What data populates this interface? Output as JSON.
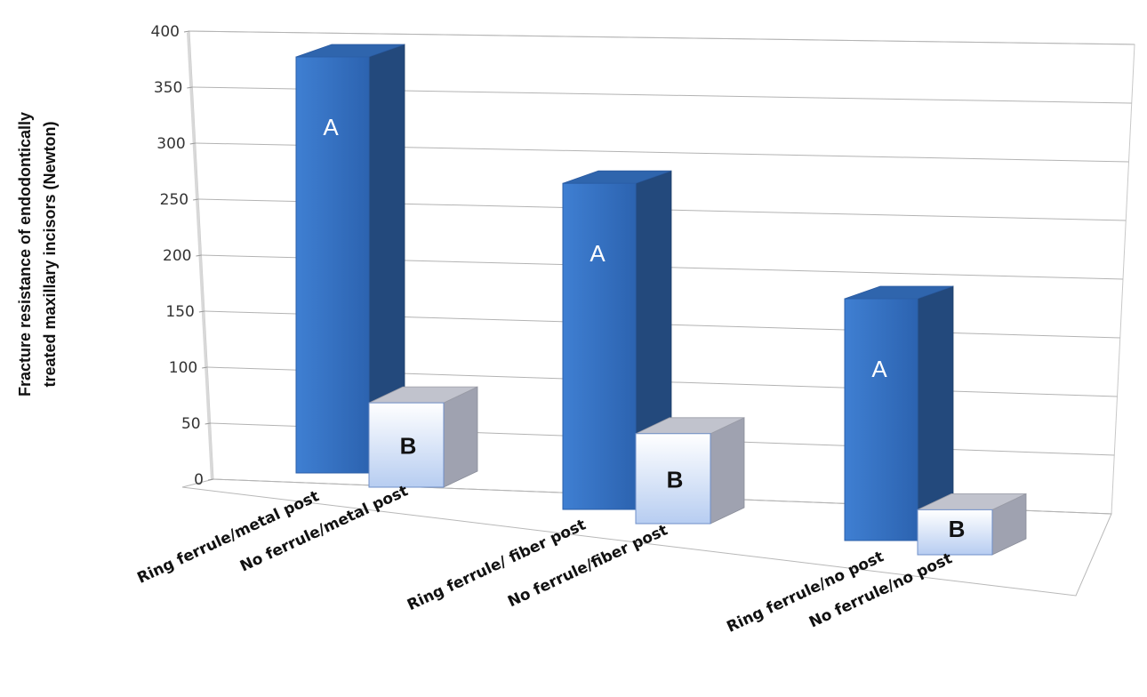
{
  "chart_data": {
    "type": "bar",
    "style": "3d-clustered-column",
    "title": "",
    "xlabel": "",
    "ylabel_lines": [
      "Fracture resistance of endodontically",
      "treated maxillary incisors  (Newton)"
    ],
    "ylim": [
      0,
      400
    ],
    "yticks": [
      0,
      50,
      100,
      150,
      200,
      250,
      300,
      350,
      400
    ],
    "grid": true,
    "legend": "none",
    "groups": [
      "metal post",
      "fiber post",
      "no post"
    ],
    "categories": [
      "Ring ferrule/metal post",
      "No ferrule/metal post",
      "Ring ferrule/ fiber post",
      "No ferrule/fiber post",
      "Ring ferrule/no post",
      "No ferrule/no post"
    ],
    "values": [
      370,
      75,
      290,
      80,
      215,
      40
    ],
    "group_index": [
      0,
      0,
      1,
      1,
      2,
      2
    ],
    "fill_style": [
      "dark",
      "light",
      "dark",
      "light",
      "dark",
      "light"
    ],
    "letters": [
      "A",
      "B",
      "A",
      "B",
      "A",
      "B"
    ],
    "colors": {
      "dark_front": "#3a77c8",
      "dark_side": "#23497c",
      "dark_top": "#2f65ad",
      "light_front_top": "#ffffff",
      "light_front_bottom": "#b7cdf1",
      "light_side": "#9fa2b0",
      "light_top": "#c1c3cd",
      "grid": "#b3b3b3"
    }
  }
}
